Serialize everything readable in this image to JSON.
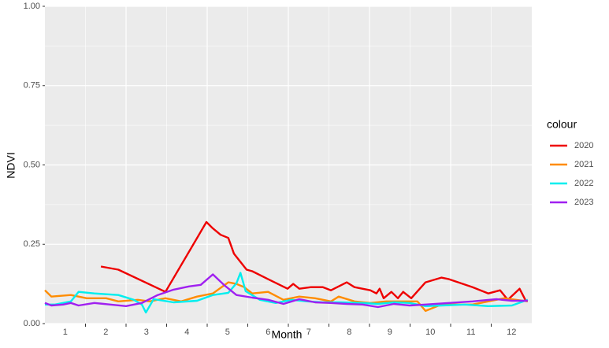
{
  "chart_data": {
    "type": "line",
    "xlabel": "Month",
    "ylabel": "NDVI",
    "legend_title": "colour",
    "legend": "right",
    "grid": true,
    "xlim": [
      0.5,
      12.5
    ],
    "xticks": [
      1,
      2,
      3,
      4,
      5,
      6,
      7,
      8,
      9,
      10,
      11,
      12
    ],
    "ylim": [
      0,
      1
    ],
    "yticks": [
      {
        "value": 0,
        "label": "0.00"
      },
      {
        "value": 0.25,
        "label": "0.25"
      },
      {
        "value": 0.5,
        "label": "0.50"
      },
      {
        "value": 0.75,
        "label": "0.75"
      },
      {
        "value": 1,
        "label": "1.00"
      }
    ],
    "series": [
      {
        "name": "2020",
        "color": "#ee0000",
        "x": [
          1.88,
          2.31,
          3.47,
          4.48,
          4.64,
          4.83,
          5.02,
          5.16,
          5.47,
          5.61,
          6.0,
          6.48,
          6.62,
          6.77,
          7.06,
          7.35,
          7.55,
          7.94,
          8.13,
          8.52,
          8.67,
          8.75,
          8.85,
          9.04,
          9.2,
          9.33,
          9.53,
          9.88,
          10.27,
          10.46,
          11.04,
          11.43,
          11.72,
          11.91,
          12.2,
          12.36
        ],
        "values": [
          0.18,
          0.17,
          0.1,
          0.32,
          0.3,
          0.28,
          0.27,
          0.22,
          0.17,
          0.165,
          0.14,
          0.11,
          0.125,
          0.11,
          0.115,
          0.115,
          0.105,
          0.13,
          0.115,
          0.105,
          0.095,
          0.11,
          0.08,
          0.1,
          0.08,
          0.1,
          0.08,
          0.13,
          0.145,
          0.14,
          0.115,
          0.095,
          0.105,
          0.075,
          0.11,
          0.07
        ]
      },
      {
        "name": "2021",
        "color": "#ff8c00",
        "x": [
          0.5,
          0.66,
          1.14,
          1.53,
          2.01,
          2.31,
          2.79,
          3.08,
          3.47,
          3.86,
          4.25,
          4.64,
          5.02,
          5.22,
          5.41,
          5.61,
          6.0,
          6.38,
          6.77,
          7.16,
          7.55,
          7.74,
          8.13,
          8.52,
          8.91,
          9.3,
          9.68,
          9.88,
          10.27,
          11.04,
          11.82,
          12.4
        ],
        "values": [
          0.105,
          0.085,
          0.09,
          0.08,
          0.08,
          0.07,
          0.075,
          0.07,
          0.08,
          0.07,
          0.085,
          0.095,
          0.13,
          0.125,
          0.115,
          0.095,
          0.1,
          0.075,
          0.085,
          0.08,
          0.07,
          0.085,
          0.07,
          0.065,
          0.07,
          0.07,
          0.07,
          0.04,
          0.06,
          0.06,
          0.08,
          0.07
        ]
      },
      {
        "name": "2022",
        "color": "#00eeee",
        "x": [
          0.5,
          0.75,
          1.14,
          1.33,
          1.72,
          2.31,
          2.69,
          2.89,
          2.99,
          3.18,
          3.67,
          4.25,
          4.64,
          5.02,
          5.22,
          5.32,
          5.45,
          5.8,
          6.19,
          6.58,
          6.97,
          7.35,
          7.74,
          8.33,
          8.71,
          9.1,
          9.49,
          9.88,
          10.27,
          10.85,
          11.43,
          12.01,
          12.4
        ],
        "values": [
          0.06,
          0.06,
          0.07,
          0.1,
          0.095,
          0.09,
          0.075,
          0.06,
          0.035,
          0.077,
          0.067,
          0.072,
          0.09,
          0.097,
          0.127,
          0.16,
          0.102,
          0.075,
          0.065,
          0.075,
          0.07,
          0.067,
          0.067,
          0.065,
          0.062,
          0.067,
          0.065,
          0.055,
          0.057,
          0.06,
          0.055,
          0.057,
          0.075
        ]
      },
      {
        "name": "2023",
        "color": "#a020f0",
        "x": [
          0.5,
          0.66,
          0.95,
          1.14,
          1.33,
          1.72,
          2.11,
          2.5,
          2.89,
          3.28,
          3.67,
          4.05,
          4.34,
          4.64,
          4.93,
          5.22,
          5.61,
          6.0,
          6.38,
          6.77,
          7.16,
          7.55,
          7.94,
          8.33,
          8.71,
          9.1,
          9.49,
          9.88,
          10.46,
          11.04,
          11.63,
          12.01,
          12.4
        ],
        "values": [
          0.065,
          0.057,
          0.06,
          0.065,
          0.057,
          0.065,
          0.06,
          0.055,
          0.065,
          0.09,
          0.107,
          0.117,
          0.122,
          0.155,
          0.12,
          0.09,
          0.082,
          0.075,
          0.062,
          0.077,
          0.067,
          0.065,
          0.062,
          0.06,
          0.052,
          0.062,
          0.057,
          0.06,
          0.065,
          0.07,
          0.077,
          0.072,
          0.072
        ]
      }
    ]
  }
}
